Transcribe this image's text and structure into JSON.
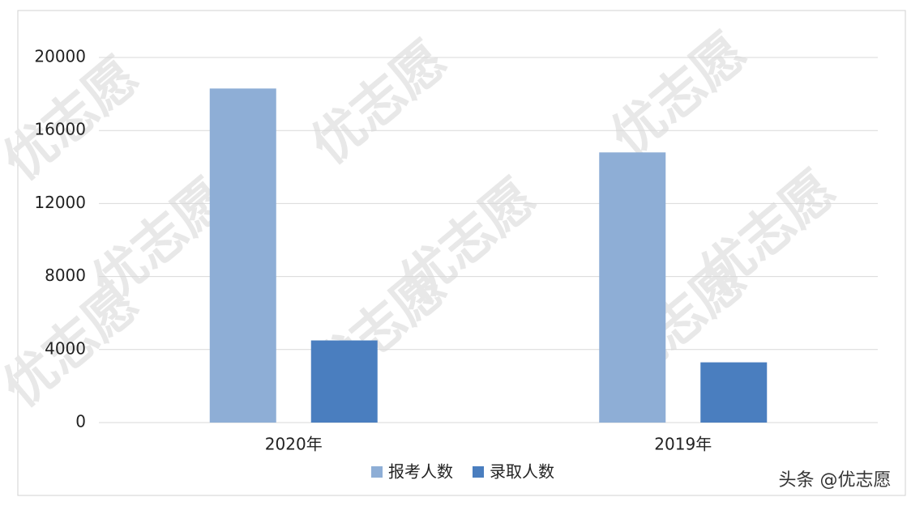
{
  "chart_data": {
    "type": "bar",
    "categories": [
      "2020年",
      "2019年"
    ],
    "series": [
      {
        "name": "报考人数",
        "color": "#8eaed6",
        "values": [
          18300,
          14800
        ]
      },
      {
        "name": "录取人数",
        "color": "#4a7ebf",
        "values": [
          4500,
          3300
        ]
      }
    ],
    "ylim": [
      0,
      20000
    ],
    "yticks": [
      0,
      4000,
      8000,
      12000,
      16000,
      20000
    ],
    "grid": true,
    "legend": "bottom",
    "watermark": "优志愿",
    "credit": "头条 @优志愿"
  }
}
